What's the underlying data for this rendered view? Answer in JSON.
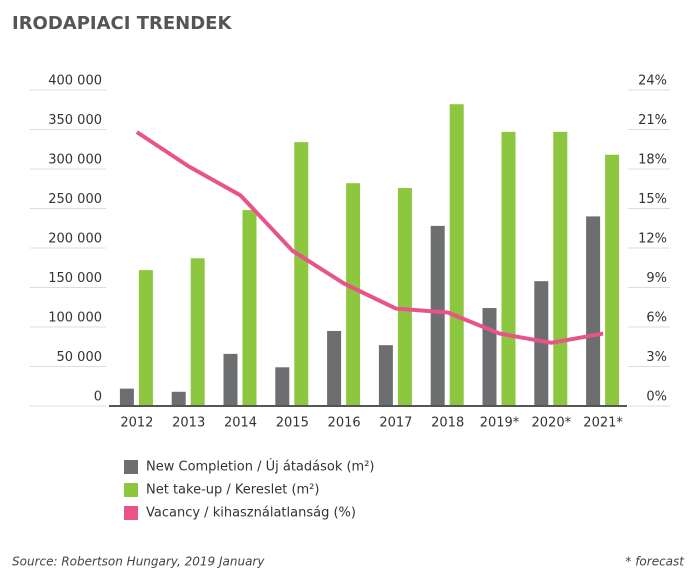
{
  "chart_data": {
    "type": "bar",
    "title": "IRODAPIACI TRENDEK",
    "categories": [
      "2012",
      "2013",
      "2014",
      "2015",
      "2016",
      "2017",
      "2018",
      "2019*",
      "2020*",
      "2021*"
    ],
    "series": [
      {
        "name": "New Completion / Új átadások (m²)",
        "color": "#6d6e70",
        "type": "bar",
        "values": [
          22000,
          18000,
          66000,
          49000,
          95000,
          77000,
          228000,
          124000,
          158000,
          240000
        ]
      },
      {
        "name": "Net take-up / Kereslet (m²)",
        "color": "#8dc63f",
        "type": "bar",
        "values": [
          172000,
          187000,
          248000,
          334000,
          282000,
          276000,
          382000,
          347000,
          347000,
          318000
        ]
      },
      {
        "name": "Vacancy / kihasználatlanság (%)",
        "color": "#e8538a",
        "type": "line",
        "axis": "y2",
        "values": [
          20.8,
          18.2,
          16.0,
          11.8,
          9.3,
          7.4,
          7.1,
          5.5,
          4.8,
          5.5
        ]
      }
    ],
    "ylim": [
      0,
      400000
    ],
    "yticks": [
      0,
      {
        "value": 50000,
        "label": "50 000"
      },
      {
        "value": 100000,
        "label": "100 000"
      },
      {
        "value": 150000,
        "label": "150 000"
      },
      {
        "value": 200000,
        "label": "200 000"
      },
      {
        "value": 250000,
        "label": "250 000"
      },
      {
        "value": 300000,
        "label": "300 000"
      },
      {
        "value": 350000,
        "label": "350 000"
      },
      {
        "value": 400000,
        "label": "400 000"
      }
    ],
    "y2lim": [
      0,
      24
    ],
    "y2ticks": [
      {
        "value": 0,
        "label": "0%"
      },
      {
        "value": 3,
        "label": "3%"
      },
      {
        "value": 6,
        "label": "6%"
      },
      {
        "value": 9,
        "label": "9%"
      },
      {
        "value": 12,
        "label": "12%"
      },
      {
        "value": 15,
        "label": "15%"
      },
      {
        "value": 18,
        "label": "18%"
      },
      {
        "value": 21,
        "label": "21%"
      },
      {
        "value": 24,
        "label": "24%"
      }
    ],
    "source": "Source: Robertson Hungary, 2019 January",
    "footnote": "* forecast"
  }
}
